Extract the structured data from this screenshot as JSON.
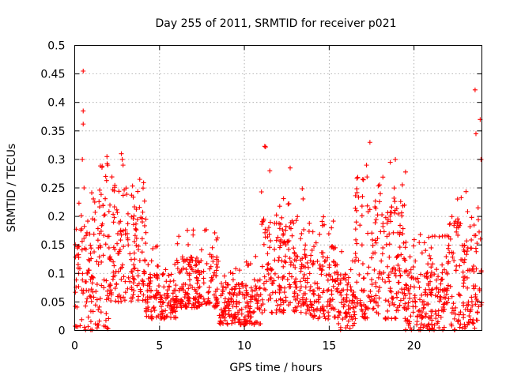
{
  "chart_data": {
    "type": "scatter",
    "title": "Day 255 of 2011, SRMTID for receiver p021",
    "xlabel": "GPS time / hours",
    "ylabel": "SRMTID / TECUs",
    "xlim": [
      0,
      24
    ],
    "ylim": [
      0,
      0.5
    ],
    "x_ticks": [
      0,
      5,
      10,
      15,
      20
    ],
    "y_ticks": [
      0,
      0.05,
      0.1,
      0.15,
      0.2,
      0.25,
      0.3,
      0.35,
      0.4,
      0.45,
      0.5
    ],
    "x_tick_labels": [
      "0",
      "5",
      "10",
      "15",
      "20"
    ],
    "y_tick_labels": [
      "0",
      "0.05",
      "0.1",
      "0.15",
      "0.2",
      "0.25",
      "0.3",
      "0.35",
      "0.4",
      "0.45",
      "0.5"
    ],
    "grid": true,
    "marker": "+",
    "series": [
      {
        "name": "SRMTID",
        "color": "#ff0000",
        "density_profile_hours": [
          {
            "from": 0.0,
            "to": 1.0,
            "typical_min": 0.0,
            "typical_max": 0.2
          },
          {
            "from": 1.0,
            "to": 2.0,
            "typical_min": 0.0,
            "typical_max": 0.25
          },
          {
            "from": 2.0,
            "to": 4.2,
            "typical_min": 0.05,
            "typical_max": 0.22
          },
          {
            "from": 4.2,
            "to": 6.0,
            "typical_min": 0.02,
            "typical_max": 0.1
          },
          {
            "from": 6.0,
            "to": 8.5,
            "typical_min": 0.04,
            "typical_max": 0.13
          },
          {
            "from": 8.5,
            "to": 11.0,
            "typical_min": 0.01,
            "typical_max": 0.09
          },
          {
            "from": 11.0,
            "to": 13.5,
            "typical_min": 0.03,
            "typical_max": 0.2
          },
          {
            "from": 13.5,
            "to": 15.5,
            "typical_min": 0.02,
            "typical_max": 0.15
          },
          {
            "from": 15.5,
            "to": 16.5,
            "typical_min": 0.0,
            "typical_max": 0.1
          },
          {
            "from": 16.5,
            "to": 19.5,
            "typical_min": 0.02,
            "typical_max": 0.22
          },
          {
            "from": 19.5,
            "to": 22.0,
            "typical_min": 0.0,
            "typical_max": 0.12
          },
          {
            "from": 22.0,
            "to": 24.0,
            "typical_min": 0.0,
            "typical_max": 0.2
          }
        ],
        "notable_points": [
          [
            0.5,
            0.455
          ],
          [
            0.5,
            0.385
          ],
          [
            0.5,
            0.362
          ],
          [
            0.45,
            0.3
          ],
          [
            0.55,
            0.25
          ],
          [
            1.9,
            0.305
          ],
          [
            1.95,
            0.29
          ],
          [
            2.75,
            0.31
          ],
          [
            2.8,
            0.3
          ],
          [
            2.85,
            0.29
          ],
          [
            11.2,
            0.323
          ],
          [
            11.25,
            0.322
          ],
          [
            11.5,
            0.28
          ],
          [
            12.7,
            0.285
          ],
          [
            17.4,
            0.33
          ],
          [
            17.2,
            0.29
          ],
          [
            18.6,
            0.295
          ],
          [
            18.9,
            0.3
          ],
          [
            19.5,
            0.278
          ],
          [
            23.6,
            0.422
          ],
          [
            23.9,
            0.37
          ],
          [
            23.65,
            0.345
          ],
          [
            23.95,
            0.3
          ]
        ]
      }
    ]
  }
}
